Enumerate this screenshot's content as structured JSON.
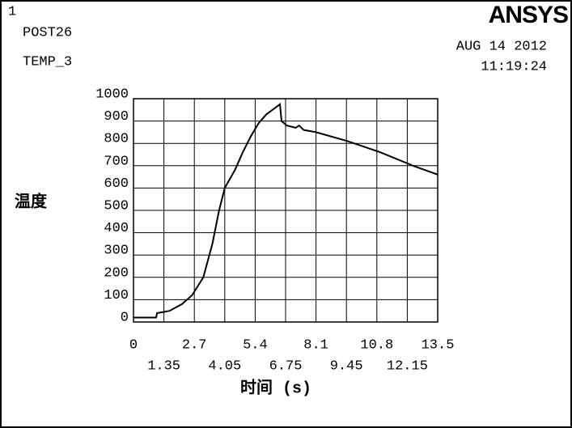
{
  "header": {
    "window": "1",
    "program": "POST26",
    "variable": "TEMP_3",
    "logo": "ANSYS",
    "date": "AUG 14 2012",
    "time": "11:19:24"
  },
  "chart_data": {
    "type": "line",
    "xlabel": "时间 (s)",
    "ylabel": "温度",
    "color": "#000000",
    "grid": true,
    "x": [
      0,
      1.0,
      1.05,
      1.6,
      2.15,
      2.6,
      3.1,
      3.5,
      3.8,
      4.05,
      4.5,
      4.85,
      5.2,
      5.55,
      5.9,
      6.3,
      6.5,
      6.57,
      6.8,
      7.2,
      7.35,
      7.55,
      8.1,
      9.5,
      10.95,
      12.4,
      13.5
    ],
    "values": [
      20,
      20,
      40,
      50,
      80,
      120,
      200,
      350,
      500,
      600,
      680,
      760,
      830,
      890,
      930,
      960,
      975,
      900,
      880,
      870,
      880,
      860,
      850,
      810,
      760,
      700,
      660
    ],
    "xlim": [
      0,
      13.5
    ],
    "xticks": [
      0,
      1.35,
      2.7,
      4.05,
      5.4,
      6.75,
      8.1,
      9.45,
      10.8,
      12.15,
      13.5
    ],
    "ylim": [
      0,
      1000
    ],
    "yticks": [
      0,
      100,
      200,
      300,
      400,
      500,
      600,
      700,
      800,
      900,
      1000
    ]
  }
}
